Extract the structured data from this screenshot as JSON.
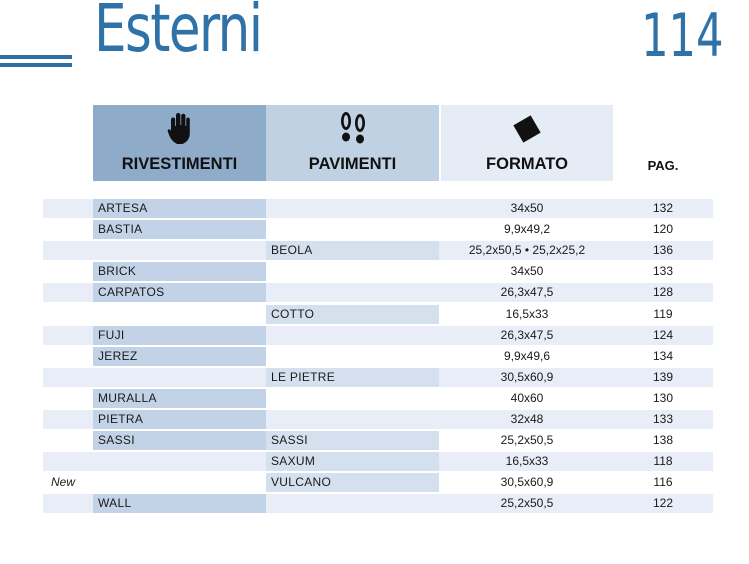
{
  "header": {
    "title": "Esterni",
    "page_number": "114"
  },
  "columns": {
    "rivestimenti": "RIVESTIMENTI",
    "pavimenti": "PAVIMENTI",
    "formato": "FORMATO",
    "pag": "PAG."
  },
  "icons": {
    "rivestimenti": "hand-icon",
    "pavimenti": "footprints-icon",
    "formato": "tile-square-icon"
  },
  "colors": {
    "accent": "#2f72a8",
    "header_riv": "#8eabc9",
    "header_pav": "#c0d1e4",
    "header_for": "#e6ecf6",
    "row_shade": "#e8edf7"
  },
  "rows": [
    {
      "tag": "",
      "rivestimenti": "ARTESA",
      "pavimenti": "",
      "formato": "34x50",
      "pag": "132"
    },
    {
      "tag": "",
      "rivestimenti": "BASTIA",
      "pavimenti": "",
      "formato": "9,9x49,2",
      "pag": "120"
    },
    {
      "tag": "",
      "rivestimenti": "",
      "pavimenti": "BEOLA",
      "formato": "25,2x50,5 • 25,2x25,2",
      "pag": "136"
    },
    {
      "tag": "",
      "rivestimenti": "BRICK",
      "pavimenti": "",
      "formato": "34x50",
      "pag": "133"
    },
    {
      "tag": "",
      "rivestimenti": "CARPATOS",
      "pavimenti": "",
      "formato": "26,3x47,5",
      "pag": "128"
    },
    {
      "tag": "",
      "rivestimenti": "",
      "pavimenti": "COTTO",
      "formato": "16,5x33",
      "pag": "119"
    },
    {
      "tag": "",
      "rivestimenti": "FUJI",
      "pavimenti": "",
      "formato": "26,3x47,5",
      "pag": "124"
    },
    {
      "tag": "",
      "rivestimenti": "JEREZ",
      "pavimenti": "",
      "formato": "9,9x49,6",
      "pag": "134"
    },
    {
      "tag": "",
      "rivestimenti": "",
      "pavimenti": "LE PIETRE",
      "formato": "30,5x60,9",
      "pag": "139"
    },
    {
      "tag": "",
      "rivestimenti": "MURALLA",
      "pavimenti": "",
      "formato": "40x60",
      "pag": "130"
    },
    {
      "tag": "",
      "rivestimenti": "PIETRA",
      "pavimenti": "",
      "formato": "32x48",
      "pag": "133"
    },
    {
      "tag": "",
      "rivestimenti": "SASSI",
      "pavimenti": "SASSI",
      "formato": "25,2x50,5",
      "pag": "138"
    },
    {
      "tag": "",
      "rivestimenti": "",
      "pavimenti": "SAXUM",
      "formato": "16,5x33",
      "pag": "118"
    },
    {
      "tag": "New",
      "rivestimenti": "",
      "pavimenti": "VULCANO",
      "formato": "30,5x60,9",
      "pag": "116"
    },
    {
      "tag": "",
      "rivestimenti": "WALL",
      "pavimenti": "",
      "formato": "25,2x50,5",
      "pag": "122"
    }
  ]
}
